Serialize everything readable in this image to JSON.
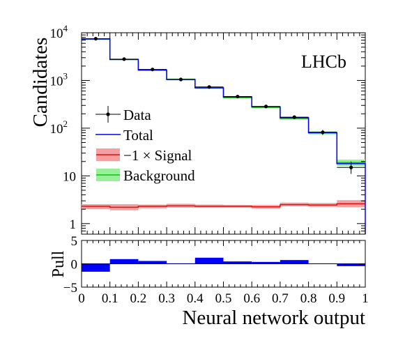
{
  "chart_data": [
    {
      "type": "histogram",
      "xlabel": "",
      "ylabel": "Candidates",
      "annotation": "LHCb",
      "yscale": "log",
      "xlim": [
        0,
        1
      ],
      "ylim": [
        0.6,
        10000
      ],
      "y_ticks": [
        {
          "value": 1,
          "label": "1"
        },
        {
          "value": 10,
          "label": "10"
        },
        {
          "value": 100,
          "base": "10",
          "exp": "2"
        },
        {
          "value": 1000,
          "base": "10",
          "exp": "3"
        },
        {
          "value": 10000,
          "base": "10",
          "exp": "4"
        }
      ],
      "bin_edges": [
        0,
        0.1,
        0.2,
        0.3,
        0.4,
        0.5,
        0.6,
        0.7,
        0.8,
        0.9,
        1.0
      ],
      "legend": [
        {
          "key": "data",
          "label": "Data"
        },
        {
          "key": "total",
          "label": "Total"
        },
        {
          "key": "signal",
          "label": "−1 × Signal"
        },
        {
          "key": "background",
          "label": "Background"
        }
      ],
      "series": [
        {
          "name": "Data",
          "kind": "points",
          "x": [
            0.05,
            0.15,
            0.25,
            0.35,
            0.45,
            0.55,
            0.65,
            0.75,
            0.85,
            0.95
          ],
          "values": [
            7500,
            2800,
            1700,
            1050,
            730,
            460,
            285,
            170,
            82,
            15
          ],
          "err_up": [
            90,
            55,
            42,
            33,
            28,
            22,
            17,
            14,
            10,
            5
          ],
          "err_down": [
            90,
            55,
            42,
            33,
            28,
            22,
            17,
            14,
            10,
            4
          ]
        },
        {
          "name": "Total",
          "kind": "step",
          "values": [
            7400,
            2750,
            1650,
            1050,
            700,
            450,
            280,
            165,
            80,
            18
          ]
        },
        {
          "name": "−1 × Signal",
          "kind": "band",
          "values": [
            2.3,
            2.2,
            2.3,
            2.35,
            2.3,
            2.3,
            2.25,
            2.5,
            2.45,
            2.6
          ],
          "band_low": [
            2.0,
            1.9,
            2.1,
            2.15,
            2.15,
            2.15,
            2.05,
            2.3,
            2.25,
            2.2
          ],
          "band_high": [
            2.55,
            2.55,
            2.5,
            2.6,
            2.5,
            2.45,
            2.45,
            2.75,
            2.7,
            3.1
          ]
        },
        {
          "name": "Background",
          "kind": "band",
          "values": [
            7400,
            2750,
            1650,
            1050,
            700,
            440,
            275,
            160,
            80,
            19
          ],
          "band_low": [
            7200,
            2680,
            1600,
            1000,
            665,
            420,
            260,
            150,
            74,
            16
          ],
          "band_high": [
            7600,
            2820,
            1700,
            1100,
            735,
            460,
            290,
            172,
            86,
            22
          ]
        }
      ],
      "colors": {
        "data": "#000000",
        "total": "#0000ff",
        "signal_line": "#e01010",
        "signal_band": "#f4a0a0",
        "background_line": "#10c010",
        "background_band": "#98f098"
      }
    },
    {
      "type": "bar",
      "xlabel": "Neural network output",
      "ylabel": "Pull",
      "xlim": [
        0,
        1
      ],
      "ylim": [
        -5,
        5
      ],
      "y_ticks": [
        -5,
        0,
        5
      ],
      "x_ticks": [
        "0",
        "0.1",
        "0.2",
        "0.3",
        "0.4",
        "0.5",
        "0.6",
        "0.7",
        "0.8",
        "0.9",
        "1"
      ],
      "bin_edges": [
        0,
        0.1,
        0.2,
        0.3,
        0.4,
        0.5,
        0.6,
        0.7,
        0.8,
        0.9,
        1.0
      ],
      "values": [
        -1.7,
        1.0,
        0.6,
        0.1,
        1.3,
        0.5,
        0.4,
        0.8,
        0,
        -0.5
      ],
      "color": "#0000ff"
    }
  ]
}
